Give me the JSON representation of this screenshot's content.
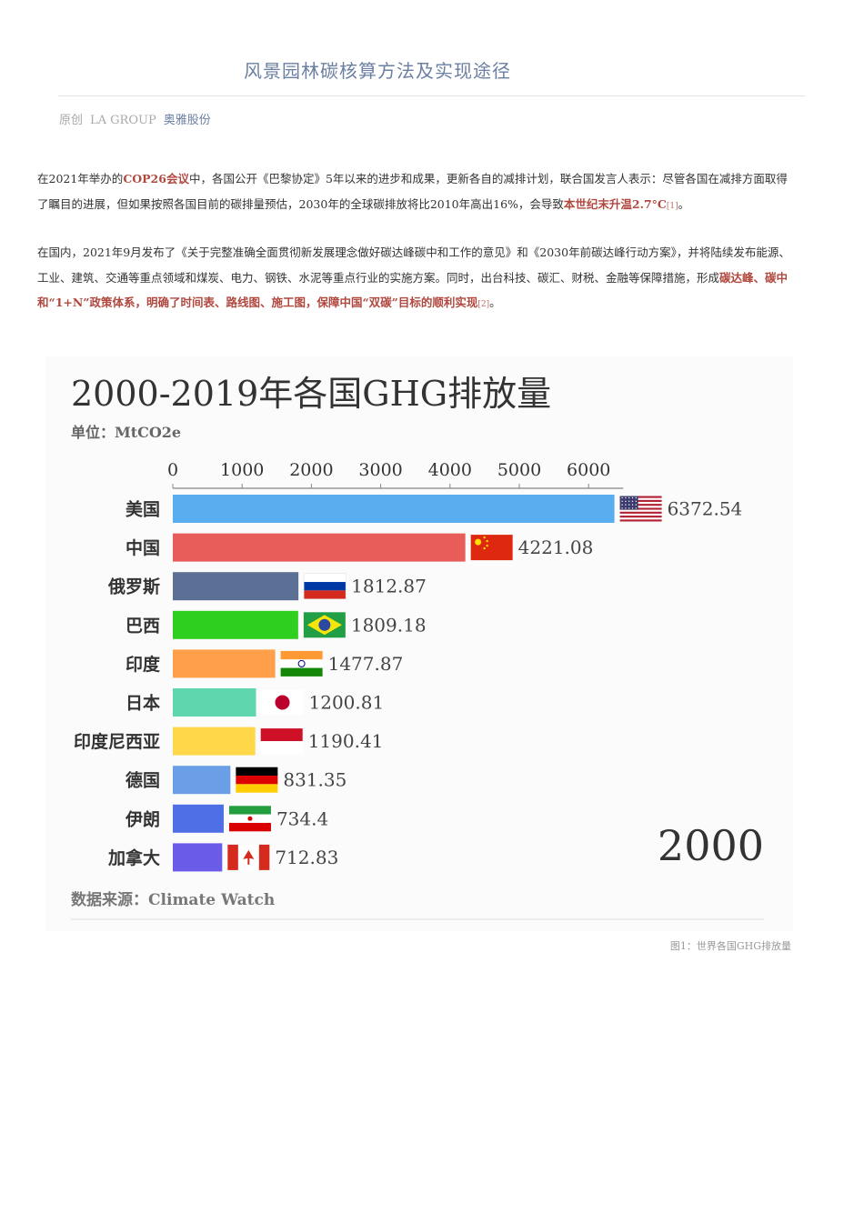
{
  "article": {
    "title": "风景园林碳核算方法及实现途径",
    "meta_original": "原创",
    "meta_author": "LA GROUP",
    "meta_account": "奥雅股份",
    "p1": {
      "a": "在2021年举办的",
      "b": "COP26会议",
      "c": "中，各国公开《巴黎协定》5年以来的进步和成果，更新各自的减排计划，联合国发言人表示：尽管各国在减排方面取得了瞩目的进展，但如果按照各国目前的碳排量预估，2030年的全球碳排放将比2010年高出16%，会导致",
      "d": "本世纪末升温2.7°C",
      "ref": "[1]",
      "e": "。"
    },
    "p2": {
      "a": "在国内，2021年9月发布了《关于完整准确全面贯彻新发展理念做好碳达峰碳中和工作的意见》和《2030年前碳达峰行动方案》，并将陆续发布能源、工业、建筑、交通等重点领域和煤炭、电力、钢铁、水泥等重点行业的实施方案。同时，出台科技、碳汇、财税、金融等保障措施，形成",
      "b": "碳达峰、碳中和“1+N”政策体系，明确了时间表、路线图、施工图，保障中国“双碳”目标的顺利实现",
      "ref": "[2]",
      "c": "。"
    },
    "caption": "图1：世界各国GHG排放量"
  },
  "chart_data": {
    "type": "bar",
    "orientation": "horizontal",
    "title": "2000-2019年各国GHG排放量",
    "subtitle": "单位：MtCO2e",
    "source": "数据来源：Climate Watch",
    "year": "2000",
    "xlim": [
      0,
      6000
    ],
    "ticks": [
      0,
      1000,
      2000,
      3000,
      4000,
      5000,
      6000
    ],
    "tick_labels": [
      "0",
      "1000",
      "2000",
      "3000",
      "4000",
      "5000",
      "6000"
    ],
    "categories": [
      "美国",
      "中国",
      "俄罗斯",
      "巴西",
      "印度",
      "日本",
      "印度尼西亚",
      "德国",
      "伊朗",
      "加拿大"
    ],
    "values": [
      6372.54,
      4221.08,
      1812.87,
      1809.18,
      1477.87,
      1200.81,
      1190.41,
      831.35,
      734.4,
      712.83
    ],
    "value_labels": [
      "6372.54",
      "4221.08",
      "1812.87",
      "1809.18",
      "1477.87",
      "1200.81",
      "1190.41",
      "831.35",
      "734.4",
      "712.83"
    ],
    "colors": [
      "#5aaef0",
      "#e85c5a",
      "#5c6f95",
      "#2fcf1f",
      "#ff9f4a",
      "#5fd6ae",
      "#ffd84a",
      "#6a9ee6",
      "#4e6fe6",
      "#6a5ce8"
    ],
    "flags": [
      "usa-flag-icon",
      "china-flag-icon",
      "russia-flag-icon",
      "brazil-flag-icon",
      "india-flag-icon",
      "japan-flag-icon",
      "indonesia-flag-icon",
      "germany-flag-icon",
      "iran-flag-icon",
      "canada-flag-icon"
    ],
    "grid": false,
    "legend": "none"
  }
}
